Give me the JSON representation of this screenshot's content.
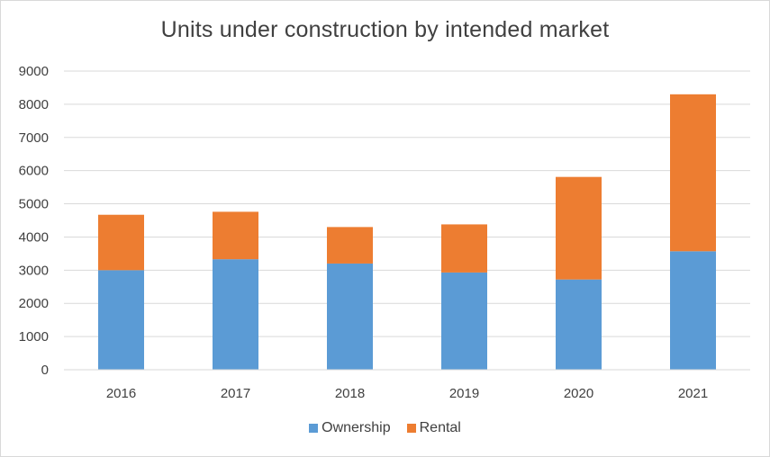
{
  "chart_data": {
    "type": "bar",
    "stacked": true,
    "title": "Units under construction by intended market",
    "xlabel": "",
    "ylabel": "",
    "categories": [
      "2016",
      "2017",
      "2018",
      "2019",
      "2020",
      "2021"
    ],
    "series": [
      {
        "name": "Ownership",
        "color": "#5b9bd5",
        "values": [
          3000,
          3330,
          3200,
          2930,
          2720,
          3570
        ]
      },
      {
        "name": "Rental",
        "color": "#ed7d31",
        "values": [
          1670,
          1430,
          1100,
          1450,
          3090,
          4730
        ]
      }
    ],
    "ylim": [
      0,
      9000
    ],
    "yticks": [
      0,
      1000,
      2000,
      3000,
      4000,
      5000,
      6000,
      7000,
      8000,
      9000
    ],
    "grid": true,
    "legend_position": "bottom"
  }
}
